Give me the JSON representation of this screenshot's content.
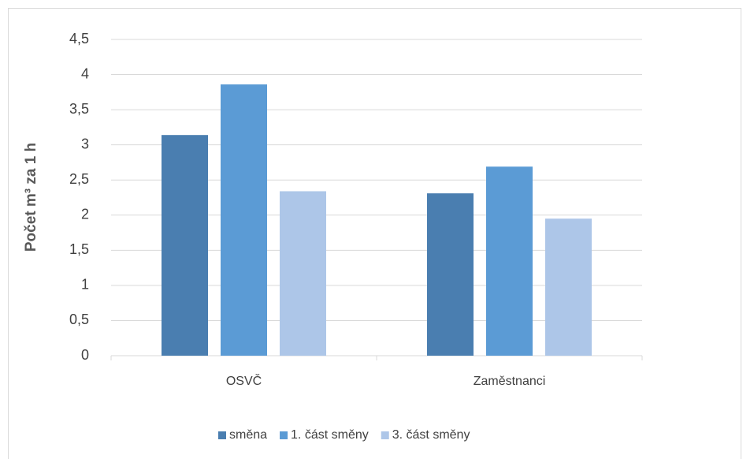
{
  "chart_data": {
    "type": "bar",
    "y_label": "Počet m³ za 1 h",
    "categories": [
      "OSVČ",
      "Zaměstnanci"
    ],
    "series": [
      {
        "name": "směna",
        "color": "#4a7eb0",
        "values": [
          3.14,
          2.31
        ]
      },
      {
        "name": "1. část směny",
        "color": "#5b9bd5",
        "values": [
          3.86,
          2.69
        ]
      },
      {
        "name": "3. část směny",
        "color": "#adc6e8",
        "values": [
          2.34,
          1.95
        ]
      }
    ],
    "ylim": [
      0,
      4.5
    ],
    "yticks": [
      0,
      {
        "value": 0.5,
        "label": "0,5"
      },
      1,
      {
        "value": 1.5,
        "label": "1,5"
      },
      2,
      {
        "value": 2.5,
        "label": "2,5"
      },
      3,
      {
        "value": 3.5,
        "label": "3,5"
      },
      4,
      {
        "value": 4.5,
        "label": "4,5"
      }
    ],
    "grid": true,
    "legend": "bottom"
  }
}
